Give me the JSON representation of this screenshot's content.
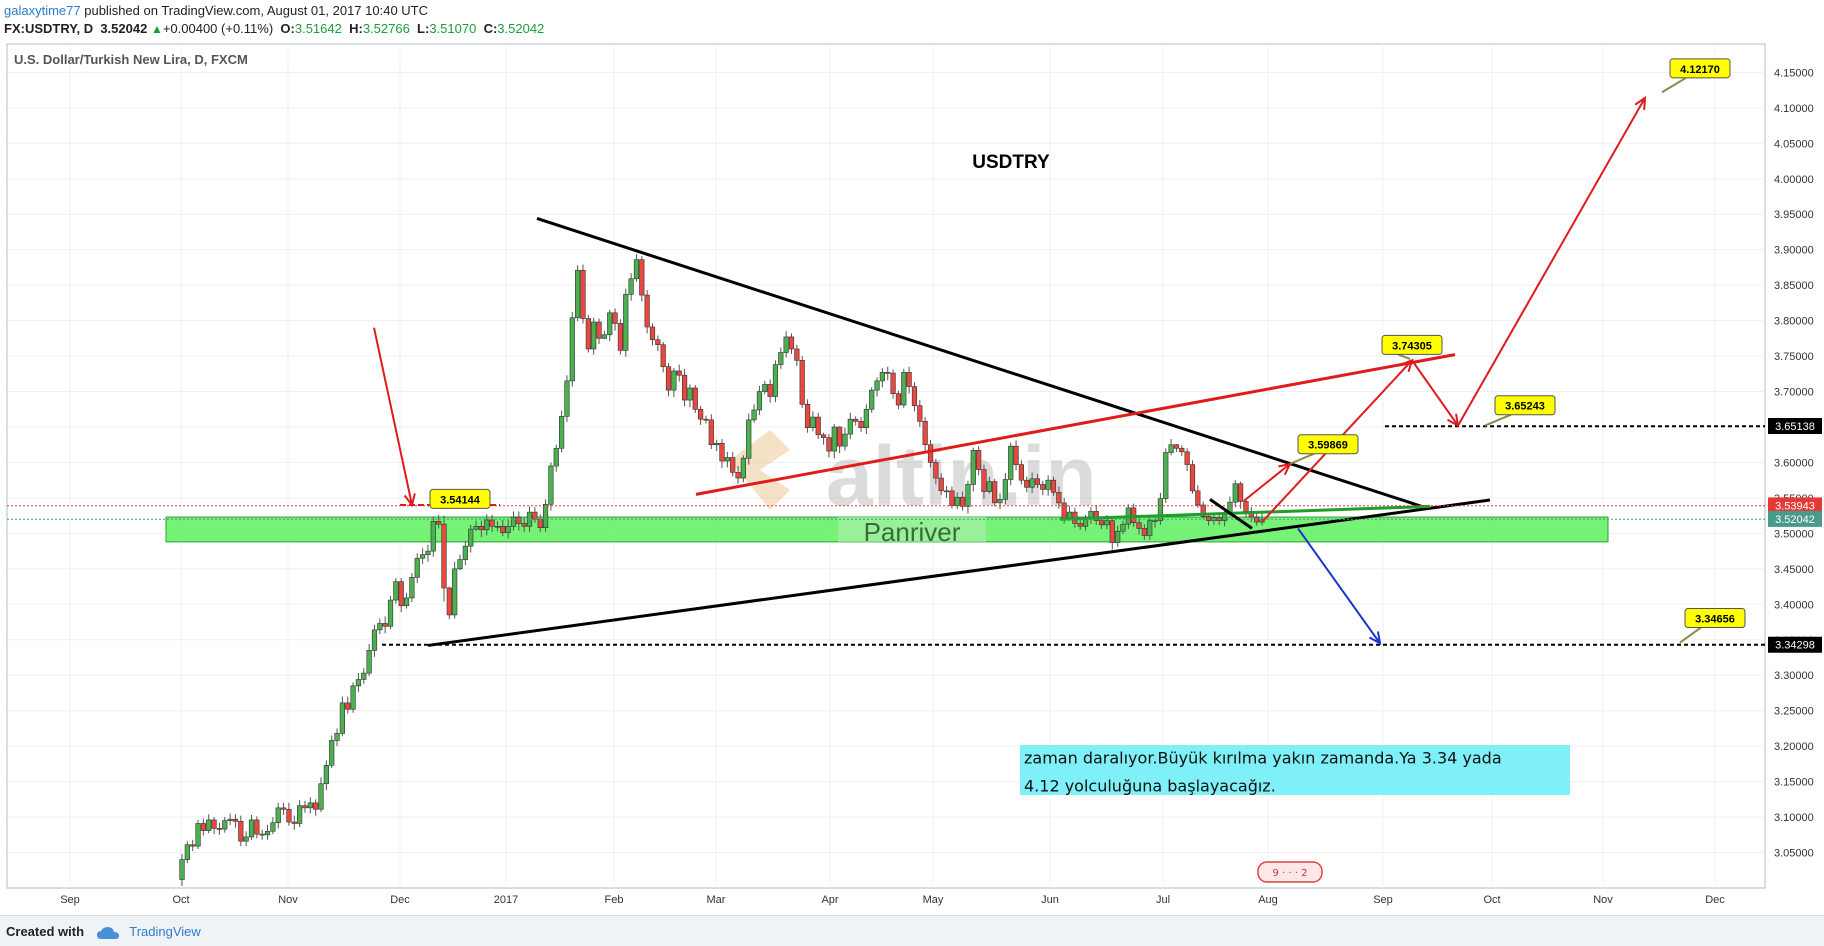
{
  "header": {
    "author": "galaxytime77",
    "published": "published on TradingView.com, August 01, 2017 10:40 UTC",
    "symbol": "FX:USDTRY, D",
    "last": "3.52042",
    "change": "+0.00400 (+0.11%)",
    "o_label": "O:",
    "o": "3.51642",
    "h_label": "H:",
    "h": "3.52766",
    "l_label": "L:",
    "l": "3.51070",
    "c_label": "C:",
    "c": "3.52042"
  },
  "chart_data": {
    "type": "candlestick",
    "title": "U.S. Dollar/Turkish New Lira, D, FXCM",
    "center_label": "USDTRY",
    "ylim": [
      3.0,
      4.19
    ],
    "y_ticks": [
      "3.05000",
      "3.10000",
      "3.15000",
      "3.20000",
      "3.25000",
      "3.30000",
      "3.35000",
      "3.40000",
      "3.45000",
      "3.50000",
      "3.55000",
      "3.60000",
      "3.65000",
      "3.70000",
      "3.75000",
      "3.80000",
      "3.85000",
      "3.90000",
      "3.95000",
      "4.00000",
      "4.05000",
      "4.10000",
      "4.15000"
    ],
    "x_ticks": [
      "Sep",
      "Oct",
      "Nov",
      "Dec",
      "2017",
      "Feb",
      "Mar",
      "Apr",
      "May",
      "Jun",
      "Jul",
      "Aug",
      "Sep",
      "Oct",
      "Nov",
      "Dec"
    ],
    "price_tags": [
      {
        "value": 3.65138,
        "label": "3.65138",
        "color": "#000000"
      },
      {
        "value": 3.53943,
        "label": "3.53943",
        "color": "#e53935"
      },
      {
        "value": 3.52042,
        "label": "3.52042",
        "color": "#4a9a8a"
      },
      {
        "value": 3.34298,
        "label": "3.34298",
        "color": "#000000"
      }
    ],
    "callouts": [
      "3.54144",
      "4.12170",
      "3.74305",
      "3.65243",
      "3.59869",
      "3.34656"
    ],
    "zone_label": "Panriver",
    "note_lines": [
      "zaman daralıyor.Büyük kırılma yakın zamanda.Ya 3.34 yada",
      "4.12 yolculuğuna başlayacağız."
    ],
    "watermark": "altin.in",
    "candles": [
      [
        3.012,
        3.04,
        3.003,
        3.048
      ],
      [
        3.04,
        3.061,
        3.035,
        3.066
      ],
      [
        3.061,
        3.059,
        3.052,
        3.068
      ],
      [
        3.059,
        3.091,
        3.055,
        3.096
      ],
      [
        3.091,
        3.081,
        3.074,
        3.098
      ],
      [
        3.081,
        3.096,
        3.077,
        3.104
      ],
      [
        3.096,
        3.084,
        3.076,
        3.1
      ],
      [
        3.084,
        3.083,
        3.075,
        3.092
      ],
      [
        3.083,
        3.095,
        3.078,
        3.1
      ],
      [
        3.095,
        3.097,
        3.089,
        3.105
      ],
      [
        3.097,
        3.094,
        3.085,
        3.104
      ],
      [
        3.094,
        3.066,
        3.059,
        3.102
      ],
      [
        3.066,
        3.072,
        3.059,
        3.08
      ],
      [
        3.072,
        3.096,
        3.068,
        3.103
      ],
      [
        3.096,
        3.076,
        3.07,
        3.101
      ],
      [
        3.076,
        3.075,
        3.068,
        3.082
      ],
      [
        3.075,
        3.08,
        3.068,
        3.089
      ],
      [
        3.08,
        3.092,
        3.076,
        3.1
      ],
      [
        3.092,
        3.113,
        3.084,
        3.12
      ],
      [
        3.113,
        3.111,
        3.103,
        3.12
      ],
      [
        3.111,
        3.093,
        3.088,
        3.12
      ],
      [
        3.093,
        3.091,
        3.082,
        3.102
      ],
      [
        3.091,
        3.116,
        3.086,
        3.124
      ],
      [
        3.116,
        3.113,
        3.106,
        3.123
      ],
      [
        3.113,
        3.12,
        3.105,
        3.128
      ],
      [
        3.12,
        3.111,
        3.102,
        3.125
      ],
      [
        3.111,
        3.147,
        3.107,
        3.156
      ],
      [
        3.147,
        3.173,
        3.138,
        3.18
      ],
      [
        3.173,
        3.208,
        3.169,
        3.215
      ],
      [
        3.208,
        3.218,
        3.2,
        3.225
      ],
      [
        3.218,
        3.261,
        3.214,
        3.27
      ],
      [
        3.261,
        3.252,
        3.246,
        3.27
      ],
      [
        3.252,
        3.285,
        3.247,
        3.29
      ],
      [
        3.285,
        3.294,
        3.276,
        3.303
      ],
      [
        3.294,
        3.303,
        3.288,
        3.31
      ],
      [
        3.303,
        3.335,
        3.299,
        3.344
      ],
      [
        3.335,
        3.364,
        3.326,
        3.371
      ],
      [
        3.364,
        3.373,
        3.358,
        3.38
      ],
      [
        3.373,
        3.369,
        3.359,
        3.383
      ],
      [
        3.369,
        3.406,
        3.365,
        3.412
      ],
      [
        3.406,
        3.432,
        3.401,
        3.437
      ],
      [
        3.432,
        3.398,
        3.389,
        3.437
      ],
      [
        3.398,
        3.409,
        3.394,
        3.416
      ],
      [
        3.409,
        3.438,
        3.403,
        3.444
      ],
      [
        3.438,
        3.465,
        3.43,
        3.472
      ],
      [
        3.465,
        3.47,
        3.457,
        3.479
      ],
      [
        3.47,
        3.475,
        3.46,
        3.484
      ],
      [
        3.475,
        3.517,
        3.467,
        3.524
      ],
      [
        3.517,
        3.513,
        3.507,
        3.526
      ],
      [
        3.513,
        3.423,
        3.404,
        3.525
      ],
      [
        3.423,
        3.385,
        3.379,
        3.425
      ],
      [
        3.385,
        3.45,
        3.38,
        3.46
      ],
      [
        3.45,
        3.463,
        3.448,
        3.47
      ],
      [
        3.463,
        3.482,
        3.455,
        3.489
      ],
      [
        3.482,
        3.506,
        3.473,
        3.512
      ],
      [
        3.506,
        3.51,
        3.503,
        3.518
      ],
      [
        3.51,
        3.505,
        3.495,
        3.518
      ],
      [
        3.505,
        3.519,
        3.497,
        3.527
      ],
      [
        3.519,
        3.51,
        3.502,
        3.526
      ],
      [
        3.51,
        3.51,
        3.503,
        3.517
      ],
      [
        3.51,
        3.501,
        3.496,
        3.519
      ],
      [
        3.501,
        3.51,
        3.493,
        3.519
      ],
      [
        3.51,
        3.523,
        3.504,
        3.531
      ],
      [
        3.523,
        3.514,
        3.504,
        3.531
      ],
      [
        3.514,
        3.51,
        3.502,
        3.522
      ],
      [
        3.51,
        3.53,
        3.502,
        3.538
      ],
      [
        3.53,
        3.52,
        3.515,
        3.537
      ],
      [
        3.52,
        3.508,
        3.502,
        3.527
      ],
      [
        3.508,
        3.541,
        3.502,
        3.548
      ],
      [
        3.541,
        3.595,
        3.532,
        3.6
      ],
      [
        3.595,
        3.62,
        3.587,
        3.625
      ],
      [
        3.62,
        3.665,
        3.614,
        3.673
      ],
      [
        3.665,
        3.715,
        3.657,
        3.723
      ],
      [
        3.715,
        3.804,
        3.707,
        3.812
      ],
      [
        3.804,
        3.871,
        3.799,
        3.878
      ],
      [
        3.871,
        3.803,
        3.796,
        3.879
      ],
      [
        3.803,
        3.76,
        3.755,
        3.808
      ],
      [
        3.76,
        3.798,
        3.752,
        3.804
      ],
      [
        3.798,
        3.775,
        3.767,
        3.803
      ],
      [
        3.775,
        3.78,
        3.774,
        3.786
      ],
      [
        3.78,
        3.811,
        3.771,
        3.815
      ],
      [
        3.811,
        3.796,
        3.786,
        3.817
      ],
      [
        3.796,
        3.758,
        3.752,
        3.802
      ],
      [
        3.758,
        3.837,
        3.749,
        3.845
      ],
      [
        3.837,
        3.859,
        3.828,
        3.867
      ],
      [
        3.859,
        3.886,
        3.855,
        3.894
      ],
      [
        3.886,
        3.836,
        3.827,
        3.891
      ],
      [
        3.836,
        3.791,
        3.782,
        3.843
      ],
      [
        3.791,
        3.773,
        3.765,
        3.796
      ],
      [
        3.773,
        3.766,
        3.757,
        3.779
      ],
      [
        3.766,
        3.735,
        3.727,
        3.77
      ],
      [
        3.735,
        3.702,
        3.693,
        3.74
      ],
      [
        3.702,
        3.729,
        3.692,
        3.733
      ],
      [
        3.729,
        3.723,
        3.714,
        3.738
      ],
      [
        3.723,
        3.688,
        3.679,
        3.732
      ],
      [
        3.688,
        3.705,
        3.678,
        3.71
      ],
      [
        3.705,
        3.675,
        3.67,
        3.709
      ],
      [
        3.675,
        3.661,
        3.653,
        3.68
      ],
      [
        3.661,
        3.66,
        3.655,
        3.666
      ],
      [
        3.66,
        3.625,
        3.619,
        3.668
      ],
      [
        3.625,
        3.627,
        3.616,
        3.632
      ],
      [
        3.627,
        3.602,
        3.592,
        3.633
      ],
      [
        3.602,
        3.607,
        3.593,
        3.615
      ],
      [
        3.607,
        3.586,
        3.58,
        3.615
      ],
      [
        3.586,
        3.578,
        3.57,
        3.595
      ],
      [
        3.578,
        3.606,
        3.572,
        3.61
      ],
      [
        3.606,
        3.66,
        3.597,
        3.669
      ],
      [
        3.66,
        3.674,
        3.656,
        3.682
      ],
      [
        3.674,
        3.7,
        3.667,
        3.708
      ],
      [
        3.7,
        3.71,
        3.696,
        3.715
      ],
      [
        3.71,
        3.693,
        3.684,
        3.717
      ],
      [
        3.693,
        3.738,
        3.685,
        3.744
      ],
      [
        3.738,
        3.755,
        3.732,
        3.762
      ],
      [
        3.755,
        3.777,
        3.748,
        3.785
      ],
      [
        3.777,
        3.76,
        3.753,
        3.782
      ],
      [
        3.76,
        3.744,
        3.736,
        3.766
      ],
      [
        3.744,
        3.682,
        3.677,
        3.75
      ],
      [
        3.682,
        3.649,
        3.642,
        3.689
      ],
      [
        3.649,
        3.664,
        3.644,
        3.672
      ],
      [
        3.664,
        3.639,
        3.633,
        3.67
      ],
      [
        3.639,
        3.635,
        3.625,
        3.642
      ],
      [
        3.635,
        3.616,
        3.607,
        3.64
      ],
      [
        3.616,
        3.65,
        3.606,
        3.654
      ],
      [
        3.65,
        3.623,
        3.613,
        3.651
      ],
      [
        3.623,
        3.64,
        3.617,
        3.649
      ],
      [
        3.64,
        3.661,
        3.633,
        3.67
      ],
      [
        3.661,
        3.658,
        3.652,
        3.665
      ],
      [
        3.658,
        3.649,
        3.643,
        3.664
      ],
      [
        3.649,
        3.675,
        3.64,
        3.682
      ],
      [
        3.675,
        3.702,
        3.67,
        3.706
      ],
      [
        3.702,
        3.715,
        3.693,
        3.72
      ],
      [
        3.715,
        3.727,
        3.706,
        3.733
      ],
      [
        3.727,
        3.726,
        3.716,
        3.735
      ],
      [
        3.726,
        3.697,
        3.69,
        3.731
      ],
      [
        3.697,
        3.681,
        3.675,
        3.701
      ],
      [
        3.681,
        3.727,
        3.677,
        3.732
      ],
      [
        3.727,
        3.707,
        3.697,
        3.735
      ],
      [
        3.707,
        3.68,
        3.672,
        3.713
      ],
      [
        3.68,
        3.658,
        3.65,
        3.688
      ],
      [
        3.658,
        3.625,
        3.616,
        3.664
      ],
      [
        3.625,
        3.6,
        3.593,
        3.632
      ],
      [
        3.6,
        3.578,
        3.569,
        3.605
      ],
      [
        3.578,
        3.56,
        3.554,
        3.585
      ],
      [
        3.56,
        3.56,
        3.55,
        3.567
      ],
      [
        3.56,
        3.539,
        3.535,
        3.566
      ],
      [
        3.539,
        3.551,
        3.534,
        3.558
      ],
      [
        3.551,
        3.538,
        3.532,
        3.559
      ],
      [
        3.538,
        3.569,
        3.528,
        3.574
      ],
      [
        3.569,
        3.617,
        3.559,
        3.621
      ],
      [
        3.617,
        3.59,
        3.582,
        3.623
      ],
      [
        3.59,
        3.559,
        3.549,
        3.597
      ],
      [
        3.559,
        3.573,
        3.556,
        3.58
      ],
      [
        3.573,
        3.543,
        3.538,
        3.577
      ],
      [
        3.543,
        3.548,
        3.534,
        3.557
      ],
      [
        3.548,
        3.576,
        3.541,
        3.585
      ],
      [
        3.576,
        3.623,
        3.568,
        3.628
      ],
      [
        3.623,
        3.597,
        3.589,
        3.631
      ],
      [
        3.597,
        3.575,
        3.569,
        3.603
      ],
      [
        3.575,
        3.565,
        3.558,
        3.58
      ],
      [
        3.565,
        3.577,
        3.557,
        3.586
      ],
      [
        3.577,
        3.569,
        3.564,
        3.584
      ],
      [
        3.569,
        3.562,
        3.554,
        3.574
      ],
      [
        3.562,
        3.575,
        3.553,
        3.582
      ],
      [
        3.575,
        3.558,
        3.553,
        3.58
      ],
      [
        3.558,
        3.543,
        3.535,
        3.566
      ],
      [
        3.543,
        3.521,
        3.514,
        3.55
      ],
      [
        3.521,
        3.53,
        3.518,
        3.539
      ],
      [
        3.53,
        3.514,
        3.508,
        3.536
      ],
      [
        3.514,
        3.51,
        3.505,
        3.519
      ],
      [
        3.51,
        3.521,
        3.504,
        3.526
      ],
      [
        3.521,
        3.531,
        3.513,
        3.537
      ],
      [
        3.531,
        3.518,
        3.512,
        3.54
      ],
      [
        3.518,
        3.512,
        3.506,
        3.524
      ],
      [
        3.512,
        3.518,
        3.506,
        3.526
      ],
      [
        3.518,
        3.487,
        3.477,
        3.524
      ],
      [
        3.487,
        3.503,
        3.481,
        3.511
      ],
      [
        3.503,
        3.513,
        3.499,
        3.518
      ],
      [
        3.513,
        3.536,
        3.506,
        3.541
      ],
      [
        3.536,
        3.515,
        3.509,
        3.542
      ],
      [
        3.515,
        3.507,
        3.498,
        3.522
      ],
      [
        3.507,
        3.497,
        3.491,
        3.513
      ],
      [
        3.497,
        3.518,
        3.491,
        3.522
      ],
      [
        3.518,
        3.518,
        3.508,
        3.522
      ],
      [
        3.518,
        3.549,
        3.512,
        3.557
      ],
      [
        3.549,
        3.614,
        3.543,
        3.62
      ],
      [
        3.614,
        3.625,
        3.61,
        3.633
      ],
      [
        3.625,
        3.62,
        3.615,
        3.626
      ],
      [
        3.62,
        3.615,
        3.609,
        3.624
      ],
      [
        3.615,
        3.597,
        3.588,
        3.62
      ],
      [
        3.597,
        3.56,
        3.556,
        3.603
      ],
      [
        3.56,
        3.54,
        3.536,
        3.568
      ],
      [
        3.54,
        3.524,
        3.52,
        3.545
      ],
      [
        3.524,
        3.518,
        3.511,
        3.529
      ],
      [
        3.518,
        3.522,
        3.512,
        3.527
      ],
      [
        3.522,
        3.518,
        3.512,
        3.528
      ],
      [
        3.518,
        3.528,
        3.51,
        3.535
      ],
      [
        3.528,
        3.544,
        3.524,
        3.552
      ],
      [
        3.544,
        3.57,
        3.537,
        3.575
      ],
      [
        3.57,
        3.545,
        3.535,
        3.573
      ],
      [
        3.545,
        3.531,
        3.522,
        3.55
      ],
      [
        3.531,
        3.523,
        3.516,
        3.537
      ],
      [
        3.523,
        3.516,
        3.511,
        3.529
      ],
      [
        3.516,
        3.52,
        3.511,
        3.528
      ]
    ]
  },
  "footer": {
    "created_with": "Created with",
    "brand": "TradingView"
  }
}
